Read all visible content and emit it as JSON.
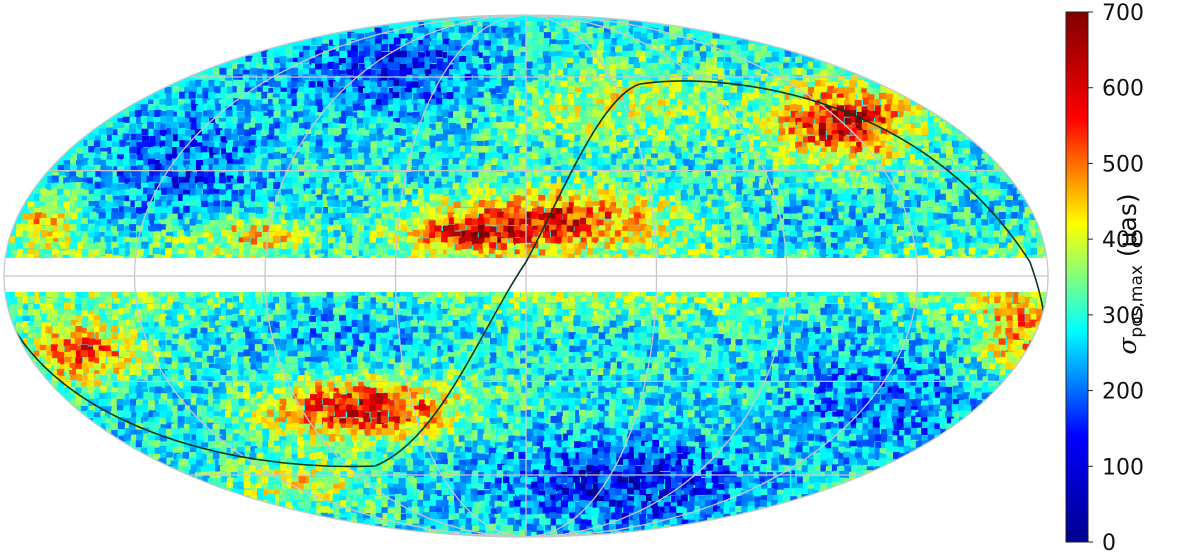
{
  "map": {
    "projection": "mollweide",
    "graticule_color": "#c8c8c8",
    "empty_band_color": "#ffffff",
    "curve_color": "#0a3a1a",
    "palette": "jet"
  },
  "colorbar": {
    "min": 0,
    "max": 700,
    "ticks": [
      "700",
      "600",
      "500",
      "400",
      "300",
      "200",
      "100",
      "0"
    ],
    "tick_values": [
      700,
      600,
      500,
      400,
      300,
      200,
      100,
      0
    ],
    "label_symbol": "σ",
    "label_subscript": "pos,max",
    "label_unit": "(μas)",
    "colors": [
      "#00008f",
      "#0000ff",
      "#00ffff",
      "#ffff00",
      "#ff0000",
      "#800000"
    ]
  }
}
